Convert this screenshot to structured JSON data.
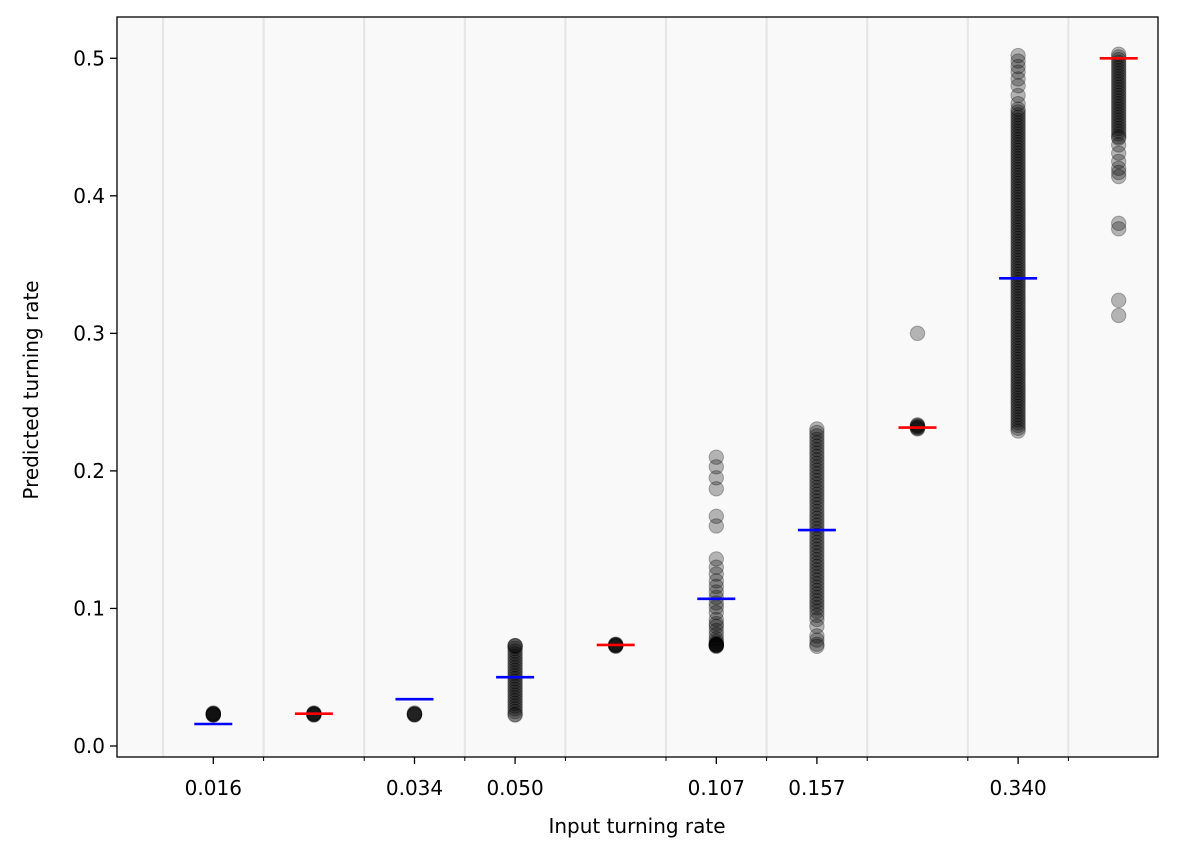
{
  "chart_data": {
    "type": "scatter",
    "title": "",
    "xlabel": "Input turning rate",
    "ylabel": "Predicted turning rate",
    "ylim": [
      -0.008,
      0.53
    ],
    "yticks": [
      "0.0",
      "0.1",
      "0.2",
      "0.3",
      "0.4",
      "0.5"
    ],
    "xticks": [
      "0.016",
      "0.034",
      "0.050",
      "0.107",
      "0.157",
      "0.340"
    ],
    "grid": "vertical bin separators",
    "background": "#f9f9f9",
    "point_color": "#000000",
    "point_opacity": 0.28,
    "colors": {
      "blue": "#0000ff",
      "red": "#ff0000"
    },
    "bins": [
      {
        "input": 0.016,
        "label": "0.016",
        "marker_color": "blue",
        "marker": 0.016,
        "points": [
          0.0225,
          0.0235,
          0.023,
          0.024,
          0.0228,
          0.0232,
          0.0236,
          0.0226
        ]
      },
      {
        "input": 0.023,
        "label": "",
        "marker_color": "red",
        "marker": 0.0235,
        "points": [
          0.0225,
          0.023,
          0.0235,
          0.0232,
          0.0228,
          0.024,
          0.0236
        ]
      },
      {
        "input": 0.034,
        "label": "0.034",
        "marker_color": "blue",
        "marker": 0.034,
        "points": [
          0.0225,
          0.023,
          0.0235,
          0.0232,
          0.0228,
          0.024
        ]
      },
      {
        "input": 0.05,
        "label": "0.050",
        "marker_color": "blue",
        "marker": 0.05,
        "range": [
          0.023,
          0.073
        ],
        "range_step": 0.002,
        "points": [
          0.0225,
          0.073,
          0.0725
        ]
      },
      {
        "input": 0.073,
        "label": "",
        "marker_color": "red",
        "marker": 0.0735,
        "points": [
          0.0725,
          0.073,
          0.0735,
          0.0738,
          0.0728,
          0.0732,
          0.074
        ]
      },
      {
        "input": 0.107,
        "label": "0.107",
        "marker_color": "blue",
        "marker": 0.107,
        "points": [
          0.0725,
          0.073,
          0.0735,
          0.074,
          0.0728,
          0.0733,
          0.0738,
          0.0745,
          0.076,
          0.078,
          0.081,
          0.084,
          0.087,
          0.089,
          0.092,
          0.097,
          0.101,
          0.104,
          0.108,
          0.112,
          0.116,
          0.12,
          0.125,
          0.13,
          0.136,
          0.16,
          0.167,
          0.187,
          0.195,
          0.203,
          0.21
        ]
      },
      {
        "input": 0.157,
        "label": "0.157",
        "marker_color": "blue",
        "marker": 0.157,
        "range": [
          0.098,
          0.231
        ],
        "range_step": 0.0025,
        "points": [
          0.0725,
          0.074,
          0.077,
          0.08,
          0.087,
          0.092,
          0.095
        ]
      },
      {
        "input": 0.231,
        "label": "",
        "marker_color": "red",
        "marker": 0.2315,
        "points": [
          0.2305,
          0.231,
          0.2315,
          0.232,
          0.2325,
          0.233,
          0.2335,
          0.3
        ]
      },
      {
        "input": 0.34,
        "label": "0.340",
        "marker_color": "blue",
        "marker": 0.34,
        "range": [
          0.229,
          0.463
        ],
        "range_step": 0.002,
        "points": [
          0.467,
          0.473,
          0.48,
          0.485,
          0.49,
          0.494,
          0.498,
          0.502
        ]
      },
      {
        "input": 0.5,
        "label": "",
        "marker_color": "red",
        "marker": 0.5,
        "range": [
          0.443,
          0.504
        ],
        "range_step": 0.002,
        "points": [
          0.313,
          0.324,
          0.376,
          0.38,
          0.414,
          0.417,
          0.42,
          0.425,
          0.431,
          0.437,
          0.442
        ]
      }
    ]
  }
}
